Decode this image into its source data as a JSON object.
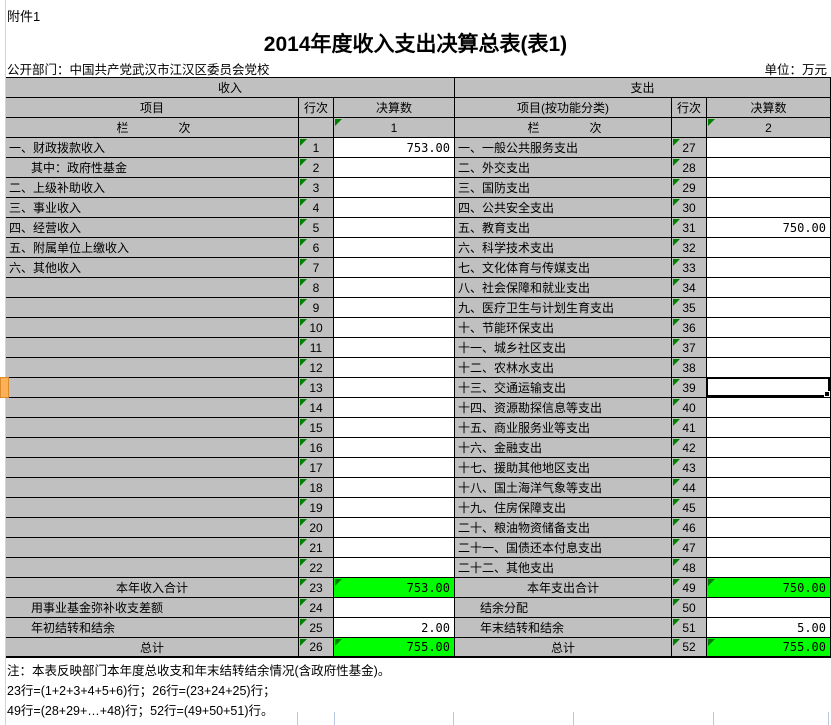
{
  "page": {
    "attachment": "附件1",
    "title": "2014年度收入支出决算总表(表1)",
    "department": "公开部门：中国共产党武汉市江汉区委员会党校",
    "unit": "单位：万元"
  },
  "colors": {
    "header_gray": "#C0C0C0",
    "total_green": "#00FF00",
    "error_triangle_green": "#008000",
    "selected_row_header_orange": "#FBB257",
    "gridline_blue": "#C9D4E6"
  },
  "table": {
    "income_section": "收入",
    "expense_section": "支出",
    "col_item": "项目",
    "col_line": "行次",
    "col_amount": "决算数",
    "col_item_fn": "项目(按功能分类)",
    "col_line2": "行次",
    "col_amount2": "决算数",
    "lan": "栏",
    "ci": "次",
    "income_col_no": "1",
    "expense_col_no": "2",
    "rows": [
      {
        "il": "一、财政拨款收入",
        "istyle": "normal",
        "iline": "1",
        "iv": "753.00",
        "ivg": false,
        "el": "一、一般公共服务支出",
        "estyle": "normal",
        "eline": "27",
        "ev": "",
        "evg": false,
        "esel": false
      },
      {
        "il": "其中：政府性基金",
        "istyle": "indent",
        "iline": "2",
        "iv": "",
        "ivg": false,
        "el": "二、外交支出",
        "estyle": "normal",
        "eline": "28",
        "ev": "",
        "evg": false,
        "esel": false
      },
      {
        "il": "二、上级补助收入",
        "istyle": "normal",
        "iline": "3",
        "iv": "",
        "ivg": false,
        "el": "三、国防支出",
        "estyle": "normal",
        "eline": "29",
        "ev": "",
        "evg": false,
        "esel": false
      },
      {
        "il": "三、事业收入",
        "istyle": "normal",
        "iline": "4",
        "iv": "",
        "ivg": false,
        "el": "四、公共安全支出",
        "estyle": "normal",
        "eline": "30",
        "ev": "",
        "evg": false,
        "esel": false
      },
      {
        "il": "四、经营收入",
        "istyle": "normal",
        "iline": "5",
        "iv": "",
        "ivg": false,
        "el": "五、教育支出",
        "estyle": "normal",
        "eline": "31",
        "ev": "750.00",
        "evg": false,
        "esel": false
      },
      {
        "il": "五、附属单位上缴收入",
        "istyle": "normal",
        "iline": "6",
        "iv": "",
        "ivg": false,
        "el": "六、科学技术支出",
        "estyle": "normal",
        "eline": "32",
        "ev": "",
        "evg": false,
        "esel": false
      },
      {
        "il": "六、其他收入",
        "istyle": "normal",
        "iline": "7",
        "iv": "",
        "ivg": false,
        "el": "七、文化体育与传媒支出",
        "estyle": "normal",
        "eline": "33",
        "ev": "",
        "evg": false,
        "esel": false
      },
      {
        "il": "",
        "istyle": "normal",
        "iline": "8",
        "iv": "",
        "ivg": false,
        "el": "八、社会保障和就业支出",
        "estyle": "normal",
        "eline": "34",
        "ev": "",
        "evg": false,
        "esel": false
      },
      {
        "il": "",
        "istyle": "normal",
        "iline": "9",
        "iv": "",
        "ivg": false,
        "el": "九、医疗卫生与计划生育支出",
        "estyle": "normal",
        "eline": "35",
        "ev": "",
        "evg": false,
        "esel": false
      },
      {
        "il": "",
        "istyle": "normal",
        "iline": "10",
        "iv": "",
        "ivg": false,
        "el": "十、节能环保支出",
        "estyle": "normal",
        "eline": "36",
        "ev": "",
        "evg": false,
        "esel": false
      },
      {
        "il": "",
        "istyle": "normal",
        "iline": "11",
        "iv": "",
        "ivg": false,
        "el": "十一、城乡社区支出",
        "estyle": "normal",
        "eline": "37",
        "ev": "",
        "evg": false,
        "esel": false
      },
      {
        "il": "",
        "istyle": "normal",
        "iline": "12",
        "iv": "",
        "ivg": false,
        "el": "十二、农林水支出",
        "estyle": "normal",
        "eline": "38",
        "ev": "",
        "evg": false,
        "esel": false
      },
      {
        "il": "",
        "istyle": "normal",
        "iline": "13",
        "iv": "",
        "ivg": false,
        "el": "十三、交通运输支出",
        "estyle": "normal",
        "eline": "39",
        "ev": "",
        "evg": false,
        "esel": true
      },
      {
        "il": "",
        "istyle": "normal",
        "iline": "14",
        "iv": "",
        "ivg": false,
        "el": "十四、资源勘探信息等支出",
        "estyle": "normal",
        "eline": "40",
        "ev": "",
        "evg": false,
        "esel": false
      },
      {
        "il": "",
        "istyle": "normal",
        "iline": "15",
        "iv": "",
        "ivg": false,
        "el": "十五、商业服务业等支出",
        "estyle": "normal",
        "eline": "41",
        "ev": "",
        "evg": false,
        "esel": false
      },
      {
        "il": "",
        "istyle": "normal",
        "iline": "16",
        "iv": "",
        "ivg": false,
        "el": "十六、金融支出",
        "estyle": "normal",
        "eline": "42",
        "ev": "",
        "evg": false,
        "esel": false
      },
      {
        "il": "",
        "istyle": "normal",
        "iline": "17",
        "iv": "",
        "ivg": false,
        "el": "十七、援助其他地区支出",
        "estyle": "normal",
        "eline": "43",
        "ev": "",
        "evg": false,
        "esel": false
      },
      {
        "il": "",
        "istyle": "normal",
        "iline": "18",
        "iv": "",
        "ivg": false,
        "el": "十八、国土海洋气象等支出",
        "estyle": "normal",
        "eline": "44",
        "ev": "",
        "evg": false,
        "esel": false
      },
      {
        "il": "",
        "istyle": "normal",
        "iline": "19",
        "iv": "",
        "ivg": false,
        "el": "十九、住房保障支出",
        "estyle": "normal",
        "eline": "45",
        "ev": "",
        "evg": false,
        "esel": false
      },
      {
        "il": "",
        "istyle": "normal",
        "iline": "20",
        "iv": "",
        "ivg": false,
        "el": "二十、粮油物资储备支出",
        "estyle": "normal",
        "eline": "46",
        "ev": "",
        "evg": false,
        "esel": false
      },
      {
        "il": "",
        "istyle": "normal",
        "iline": "21",
        "iv": "",
        "ivg": false,
        "el": "二十一、国债还本付息支出",
        "estyle": "normal",
        "eline": "47",
        "ev": "",
        "evg": false,
        "esel": false
      },
      {
        "il": "",
        "istyle": "normal",
        "iline": "22",
        "iv": "",
        "ivg": false,
        "el": "二十二、其他支出",
        "estyle": "normal",
        "eline": "48",
        "ev": "",
        "evg": false,
        "esel": false
      },
      {
        "il": "本年收入合计",
        "istyle": "center",
        "iline": "23",
        "iv": "753.00",
        "ivg": true,
        "el": "本年支出合计",
        "estyle": "center",
        "eline": "49",
        "ev": "750.00",
        "evg": true,
        "esel": false
      },
      {
        "il": "用事业基金弥补收支差额",
        "istyle": "indent",
        "iline": "24",
        "iv": "",
        "ivg": false,
        "el": "结余分配",
        "estyle": "indent",
        "eline": "50",
        "ev": "",
        "evg": false,
        "esel": false
      },
      {
        "il": "年初结转和结余",
        "istyle": "indent",
        "iline": "25",
        "iv": "2.00",
        "ivg": false,
        "el": "年末结转和结余",
        "estyle": "indent",
        "eline": "51",
        "ev": "5.00",
        "evg": false,
        "esel": false
      },
      {
        "il": "总计",
        "istyle": "center",
        "iline": "26",
        "iv": "755.00",
        "ivg": true,
        "el": "总计",
        "estyle": "center",
        "eline": "52",
        "ev": "755.00",
        "evg": true,
        "esel": false
      }
    ]
  },
  "notes": {
    "note1": "注：本表反映部门本年度总收支和年末结转结余情况(含政府性基金)。",
    "note2": "23行=(1+2+3+4+5+6)行；26行=(23+24+25)行；",
    "note3": "49行=(28+29+…+48)行；52行=(49+50+51)行。"
  }
}
